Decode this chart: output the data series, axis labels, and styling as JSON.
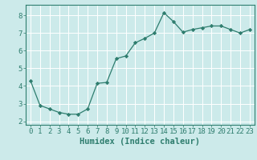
{
  "x": [
    0,
    1,
    2,
    3,
    4,
    5,
    6,
    7,
    8,
    9,
    10,
    11,
    12,
    13,
    14,
    15,
    16,
    17,
    18,
    19,
    20,
    21,
    22,
    23
  ],
  "y": [
    4.3,
    2.9,
    2.7,
    2.5,
    2.4,
    2.4,
    2.7,
    4.15,
    4.2,
    5.55,
    5.7,
    6.45,
    6.7,
    7.0,
    8.15,
    7.65,
    7.05,
    7.2,
    7.3,
    7.4,
    7.4,
    7.2,
    7.0,
    7.2
  ],
  "line_color": "#2e7d6e",
  "marker": "D",
  "markersize": 2.2,
  "linewidth": 0.9,
  "background_color": "#cceaea",
  "grid_color": "#ffffff",
  "xlabel": "Humidex (Indice chaleur)",
  "xlabel_fontsize": 7.5,
  "tick_fontsize": 6.5,
  "ylim": [
    1.8,
    8.6
  ],
  "xlim": [
    -0.5,
    23.5
  ],
  "yticks": [
    2,
    3,
    4,
    5,
    6,
    7,
    8
  ],
  "xticks": [
    0,
    1,
    2,
    3,
    4,
    5,
    6,
    7,
    8,
    9,
    10,
    11,
    12,
    13,
    14,
    15,
    16,
    17,
    18,
    19,
    20,
    21,
    22,
    23
  ]
}
